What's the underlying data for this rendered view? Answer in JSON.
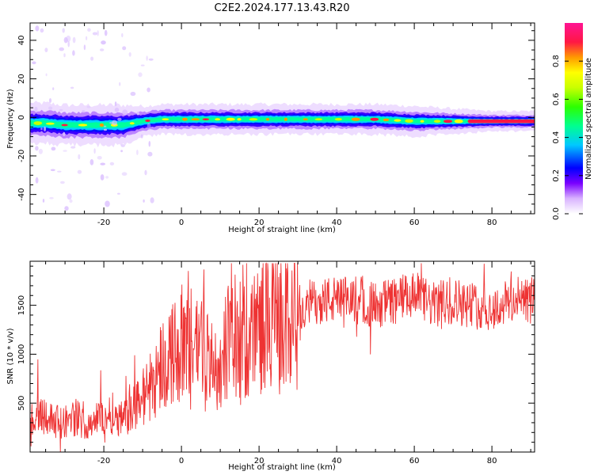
{
  "title": "C2E2.2024.177.13.43.R20",
  "chart_data": [
    {
      "type": "heatmap",
      "title": "C2E2.2024.177.13.43.R20",
      "xlabel": "Height of straight line (km)",
      "ylabel": "Frequency (Hz)",
      "xlim": [
        -39,
        91
      ],
      "ylim": [
        -50,
        49
      ],
      "xticks": [
        -20,
        0,
        20,
        40,
        60,
        80
      ],
      "yticks": [
        -40,
        -20,
        0,
        20,
        40
      ],
      "colorbar": {
        "label": "Normalized spectral amplitude",
        "range": [
          0.0,
          1.0
        ],
        "ticks": [
          0.0,
          0.2,
          0.4,
          0.6,
          0.8
        ],
        "colormap": [
          "#ffffff",
          "#d9b3ff",
          "#7a00ff",
          "#0000ff",
          "#00c8ff",
          "#00ff90",
          "#2cff00",
          "#c8ff00",
          "#ffff00",
          "#ff9900",
          "#ff1744",
          "#ff1493"
        ]
      },
      "ridge": {
        "description_values": "dominant frequency (Hz) vs height (km)",
        "x": [
          -39,
          -35,
          -30,
          -25,
          -20,
          -15,
          -10,
          -5,
          0,
          10,
          20,
          30,
          40,
          50,
          60,
          70,
          80,
          91
        ],
        "center_hz": [
          -3,
          -3,
          -4,
          -4,
          -4,
          -4,
          -2,
          -1,
          -1,
          -1,
          -1,
          -1,
          -1,
          -1,
          -2,
          -2,
          -2,
          -2
        ],
        "halfwidth_hz": [
          4,
          4,
          4,
          4,
          4,
          4,
          3,
          3,
          3,
          3,
          3,
          3,
          3,
          3,
          3,
          2.5,
          2,
          2
        ]
      },
      "grid": false
    },
    {
      "type": "line",
      "xlabel": "Height of straight line (km)",
      "ylabel": "SNR (10 * v/v)",
      "xlim": [
        -39,
        91
      ],
      "ylim": [
        0,
        1950
      ],
      "xticks": [
        -20,
        0,
        20,
        40,
        60,
        80
      ],
      "yticks": [
        500,
        1000,
        1500
      ],
      "color": "#ee3333",
      "series": [
        {
          "x": [
            -39,
            -37,
            -35,
            -33,
            -31,
            -29,
            -27,
            -25,
            -23,
            -21,
            -19,
            -17,
            -15,
            -13,
            -11,
            -9,
            -7,
            -5,
            -3,
            -1,
            1,
            3,
            5,
            7,
            9,
            11,
            13,
            15,
            17,
            19,
            21,
            23,
            25,
            27,
            29,
            31,
            35,
            40,
            45,
            50,
            55,
            60,
            65,
            70,
            75,
            80,
            85,
            91
          ],
          "values": [
            300,
            420,
            380,
            320,
            300,
            330,
            360,
            280,
            320,
            350,
            380,
            400,
            330,
            420,
            520,
            600,
            750,
            900,
            1000,
            1050,
            1150,
            1100,
            1150,
            1000,
            700,
            1100,
            1200,
            1150,
            1100,
            1250,
            1300,
            1350,
            1300,
            1350,
            1450,
            1500,
            1550,
            1550,
            1550,
            1500,
            1550,
            1600,
            1500,
            1550,
            1500,
            1450,
            1550,
            1550
          ]
        }
      ],
      "grid": false
    }
  ]
}
